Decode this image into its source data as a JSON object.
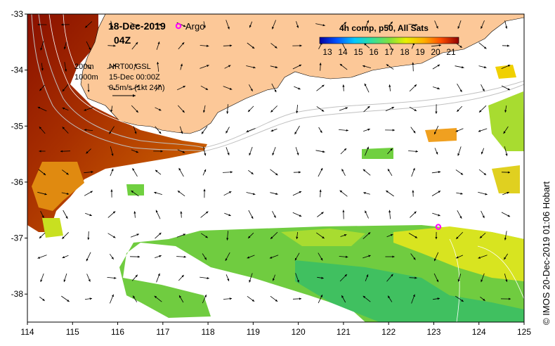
{
  "map": {
    "date": "18-Dec-2019",
    "time": "04Z",
    "argo_label": "Argo",
    "depth_200": "200m",
    "depth_1000": "1000m",
    "product": "NRT00 GSL",
    "product_date": "15-Dec 00:00Z",
    "current_scale": "0.5m/s (1kt 24h)",
    "colorbar_title": "4h comp, p50, All Sats",
    "colorbar_ticks": [
      "13",
      "14",
      "15",
      "16",
      "17",
      "18",
      "19",
      "20",
      "21"
    ],
    "colorbar_range": [
      12.5,
      21.5
    ],
    "credit": "© IMOS 20-Dec-2019 01:06 Hobart",
    "x_ticks": [
      "114",
      "115",
      "116",
      "117",
      "118",
      "119",
      "120",
      "121",
      "122",
      "123",
      "124",
      "125"
    ],
    "y_ticks": [
      "-33",
      "-34",
      "-35",
      "-36",
      "-37",
      "-38"
    ],
    "lon_range": [
      114,
      125
    ],
    "lat_range": [
      -38.5,
      -33
    ],
    "argo_position": {
      "lon": 123.1,
      "lat": -36.8
    },
    "colors": {
      "land": "#fcc898",
      "argo": "#ff00ff"
    }
  }
}
